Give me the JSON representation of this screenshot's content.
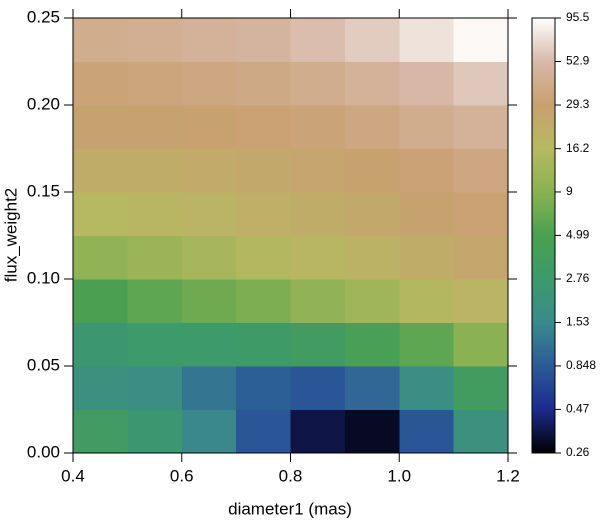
{
  "chart_data": {
    "type": "heatmap",
    "x_label": "diameter1 (mas)",
    "y_label": "flux_weight2",
    "x": [
      0.45,
      0.55,
      0.65,
      0.75,
      0.85,
      0.95,
      1.05,
      1.15
    ],
    "y": [
      0.0125,
      0.0375,
      0.0625,
      0.0875,
      0.1125,
      0.1375,
      0.1625,
      0.1875,
      0.2125,
      0.2375
    ],
    "values": [
      [
        3.5,
        2.5,
        1.5,
        0.8,
        0.35,
        0.3,
        0.8,
        2.0
      ],
      [
        2.0,
        1.8,
        1.2,
        0.9,
        0.8,
        1.0,
        1.8,
        3.5
      ],
      [
        2.5,
        2.8,
        2.8,
        3.0,
        3.5,
        4.5,
        6,
        9
      ],
      [
        5,
        6,
        7,
        8,
        10,
        12,
        15,
        18
      ],
      [
        10,
        11,
        13,
        15,
        17,
        19,
        22,
        25
      ],
      [
        16,
        17,
        18,
        20,
        22,
        24,
        27,
        30
      ],
      [
        22,
        22,
        23,
        24,
        26,
        28,
        31,
        35
      ],
      [
        27,
        27,
        28,
        30,
        32,
        35,
        40,
        45
      ],
      [
        32,
        33,
        35,
        37,
        40,
        45,
        52,
        60
      ],
      [
        40,
        42,
        45,
        48,
        55,
        62,
        75,
        90
      ]
    ],
    "xlim": [
      0.4,
      1.2
    ],
    "xticks": [
      0.4,
      0.6,
      0.8,
      {
        "value": 1,
        "label": "1.0"
      },
      1.2
    ],
    "ylim": [
      0,
      0.25
    ],
    "yticks": [
      {
        "value": 0,
        "label": "0.00"
      },
      {
        "value": 0.05,
        "label": "0.05"
      },
      {
        "value": 0.1,
        "label": "0.10"
      },
      {
        "value": 0.15,
        "label": "0.15"
      },
      {
        "value": 0.2,
        "label": "0.20"
      },
      {
        "value": 0.25,
        "label": "0.25"
      }
    ],
    "colorbar": {
      "log": true,
      "lim": [
        0.26,
        95.5
      ],
      "ticks": [
        0.26,
        0.47,
        0.848,
        1.53,
        2.76,
        4.99,
        9,
        16.2,
        29.3,
        52.9,
        95.5
      ],
      "colors": [
        "#000000",
        "#1c2a8c",
        "#2c5a98",
        "#3a8a8c",
        "#3c9a6c",
        "#4aa050",
        "#8ab252",
        "#b8b862",
        "#c8a070",
        "#d8b8a8",
        "#ffffff"
      ]
    }
  }
}
